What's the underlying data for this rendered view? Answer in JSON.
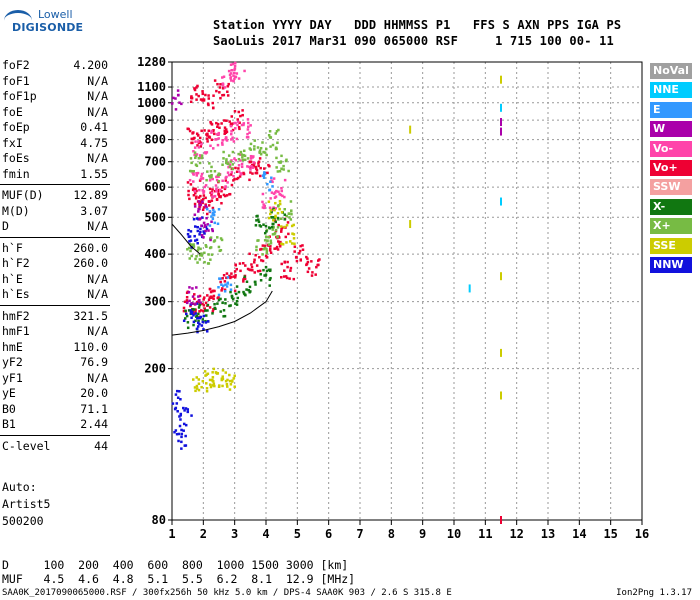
{
  "logo": {
    "line1": "Lowell",
    "line2": "DIGISONDE"
  },
  "header": {
    "line1": "Station YYYY DAY   DDD HHMMSS P1   FFS S AXN PPS IGA PS",
    "line2": "SaoLuis 2017 Mar31 090 065000 RSF     1 715 100 00- 11"
  },
  "params": [
    {
      "k": "foF2",
      "v": "4.200"
    },
    {
      "k": "foF1",
      "v": "N/A"
    },
    {
      "k": "foF1p",
      "v": "N/A"
    },
    {
      "k": "foE",
      "v": "N/A"
    },
    {
      "k": "foEp",
      "v": "0.41"
    },
    {
      "k": "fxI",
      "v": "4.75"
    },
    {
      "k": "foEs",
      "v": "N/A"
    },
    {
      "k": "fmin",
      "v": "1.55"
    },
    {
      "k": "MUF(D)",
      "v": "12.89"
    },
    {
      "k": "M(D)",
      "v": "3.07"
    },
    {
      "k": "D",
      "v": "N/A"
    },
    {
      "k": "h`F",
      "v": "260.0"
    },
    {
      "k": "h`F2",
      "v": "260.0"
    },
    {
      "k": "h`E",
      "v": "N/A"
    },
    {
      "k": "h`Es",
      "v": "N/A"
    },
    {
      "k": "hmF2",
      "v": "321.5"
    },
    {
      "k": "hmF1",
      "v": "N/A"
    },
    {
      "k": "hmE",
      "v": "110.0"
    },
    {
      "k": "yF2",
      "v": "76.9"
    },
    {
      "k": "yF1",
      "v": "N/A"
    },
    {
      "k": "yE",
      "v": "20.0"
    },
    {
      "k": "B0",
      "v": "71.1"
    },
    {
      "k": "B1",
      "v": "2.44"
    },
    {
      "k": "C-level",
      "v": "44"
    }
  ],
  "auto": {
    "line1": "Auto:",
    "line2": "Artist5",
    "line3": "500200"
  },
  "legend": [
    {
      "label": "NoVal",
      "color": "#a0a0a0"
    },
    {
      "label": "NNE",
      "color": "#00ccff"
    },
    {
      "label": "E",
      "color": "#3399ff"
    },
    {
      "label": "W",
      "color": "#aa00aa"
    },
    {
      "label": "Vo-",
      "color": "#ff44aa"
    },
    {
      "label": "Vo+",
      "color": "#ee0033"
    },
    {
      "label": "SSW",
      "color": "#f4a0a0"
    },
    {
      "label": "X-",
      "color": "#117711"
    },
    {
      "label": "X+",
      "color": "#77bb44"
    },
    {
      "label": "SSE",
      "color": "#cccc00"
    },
    {
      "label": "NNW",
      "color": "#1111dd"
    }
  ],
  "bottom": {
    "d_line": "D     100  200  400  600  800  1000 1500 3000 [km]",
    "muf_line": "MUF   4.5  4.6  4.8  5.1  5.5  6.2  8.1  12.9 [MHz]"
  },
  "footer": {
    "left": "SAA0K_2017090065000.RSF / 300fx256h 50 kHz 5.0 km / DPS-4 SAA0K 903 / 2.6 S 315.8 E",
    "right": "Ion2Png 1.3.17"
  },
  "chart_data": {
    "type": "scatter",
    "title": "",
    "xlabel": "",
    "ylabel": "",
    "xlim": [
      1,
      16
    ],
    "x_ticks": [
      1,
      2,
      3,
      4,
      5,
      6,
      7,
      8,
      9,
      10,
      11,
      12,
      13,
      14,
      15,
      16
    ],
    "y_scale": "log",
    "ylim": [
      80,
      1280
    ],
    "y_ticks": [
      80,
      200,
      300,
      400,
      500,
      600,
      700,
      800,
      900,
      1000,
      1100,
      1280
    ],
    "grid": true,
    "series": [
      {
        "name": "Vo+",
        "color": "#ee0033",
        "points": [
          [
            1.7,
            590
          ],
          [
            1.9,
            560
          ],
          [
            2.1,
            540
          ],
          [
            2.4,
            560
          ],
          [
            2.7,
            600
          ],
          [
            3.1,
            640
          ],
          [
            3.5,
            660
          ],
          [
            3.9,
            680
          ],
          [
            1.7,
            830
          ],
          [
            2.0,
            800
          ],
          [
            2.3,
            840
          ],
          [
            2.7,
            880
          ],
          [
            3.1,
            900
          ],
          [
            1.8,
            1050
          ],
          [
            2.2,
            1020
          ],
          [
            2.6,
            1080
          ],
          [
            1.6,
            300
          ],
          [
            1.8,
            290
          ],
          [
            2.1,
            300
          ],
          [
            2.4,
            320
          ],
          [
            2.8,
            340
          ],
          [
            3.2,
            360
          ],
          [
            3.6,
            380
          ],
          [
            4.0,
            400
          ],
          [
            4.3,
            430
          ],
          [
            4.5,
            470
          ],
          [
            4.7,
            360
          ],
          [
            5.1,
            400
          ],
          [
            5.5,
            370
          ],
          [
            11.5,
            80
          ]
        ]
      },
      {
        "name": "Vo-",
        "color": "#ff44aa",
        "points": [
          [
            1.8,
            620
          ],
          [
            2.2,
            600
          ],
          [
            2.6,
            620
          ],
          [
            3.0,
            680
          ],
          [
            3.4,
            700
          ],
          [
            1.9,
            760
          ],
          [
            2.4,
            800
          ],
          [
            2.9,
            840
          ],
          [
            3.3,
            860
          ],
          [
            2.8,
            1150
          ],
          [
            3.1,
            1210
          ],
          [
            4.1,
            550
          ],
          [
            4.4,
            600
          ]
        ]
      },
      {
        "name": "X+",
        "color": "#77bb44",
        "points": [
          [
            1.8,
            700
          ],
          [
            2.3,
            660
          ],
          [
            2.8,
            700
          ],
          [
            3.3,
            740
          ],
          [
            3.8,
            760
          ],
          [
            4.3,
            800
          ],
          [
            4.5,
            700
          ],
          [
            4.6,
            520
          ],
          [
            4.2,
            450
          ],
          [
            3.9,
            420
          ],
          [
            1.7,
            410
          ],
          [
            2.0,
            400
          ],
          [
            2.4,
            420
          ]
        ]
      },
      {
        "name": "X-",
        "color": "#117711",
        "points": [
          [
            1.6,
            270
          ],
          [
            2.0,
            280
          ],
          [
            2.5,
            290
          ],
          [
            3.0,
            310
          ],
          [
            3.5,
            330
          ],
          [
            4.0,
            350
          ],
          [
            4.4,
            500
          ],
          [
            3.9,
            480
          ]
        ]
      },
      {
        "name": "SSE",
        "color": "#cccc00",
        "points": [
          [
            1.9,
            185
          ],
          [
            2.2,
            190
          ],
          [
            2.5,
            187
          ],
          [
            2.8,
            185
          ],
          [
            4.3,
            520
          ],
          [
            4.7,
            450
          ],
          [
            8.6,
            850
          ],
          [
            8.6,
            480
          ],
          [
            11.5,
            1150
          ],
          [
            11.5,
            350
          ],
          [
            11.5,
            220
          ],
          [
            11.5,
            170
          ]
        ]
      },
      {
        "name": "NNW",
        "color": "#1111dd",
        "points": [
          [
            1.1,
            165
          ],
          [
            1.4,
            150
          ],
          [
            1.3,
            130
          ],
          [
            1.9,
            470
          ],
          [
            1.7,
            440
          ],
          [
            2.0,
            260
          ],
          [
            1.6,
            280
          ]
        ]
      },
      {
        "name": "W",
        "color": "#aa00aa",
        "points": [
          [
            1.1,
            1020
          ],
          [
            1.9,
            520
          ],
          [
            2.1,
            460
          ],
          [
            11.5,
            890
          ],
          [
            11.5,
            840
          ],
          [
            1.7,
            310
          ]
        ]
      },
      {
        "name": "NNE",
        "color": "#00ccff",
        "points": [
          [
            11.5,
            970
          ],
          [
            10.5,
            325
          ],
          [
            11.5,
            550
          ]
        ]
      },
      {
        "name": "E",
        "color": "#3399ff",
        "points": [
          [
            2.3,
            500
          ],
          [
            2.7,
            330
          ],
          [
            4.1,
            620
          ]
        ]
      }
    ],
    "trace": {
      "name": "O-trace",
      "points": [
        [
          1.0,
          245
        ],
        [
          1.5,
          248
        ],
        [
          2.0,
          252
        ],
        [
          2.5,
          258
        ],
        [
          3.0,
          266
        ],
        [
          3.5,
          280
        ],
        [
          4.0,
          300
        ],
        [
          4.2,
          320
        ]
      ]
    },
    "trace2": {
      "points": [
        [
          1.0,
          480
        ],
        [
          1.3,
          450
        ],
        [
          1.6,
          420
        ],
        [
          1.9,
          400
        ]
      ]
    }
  }
}
